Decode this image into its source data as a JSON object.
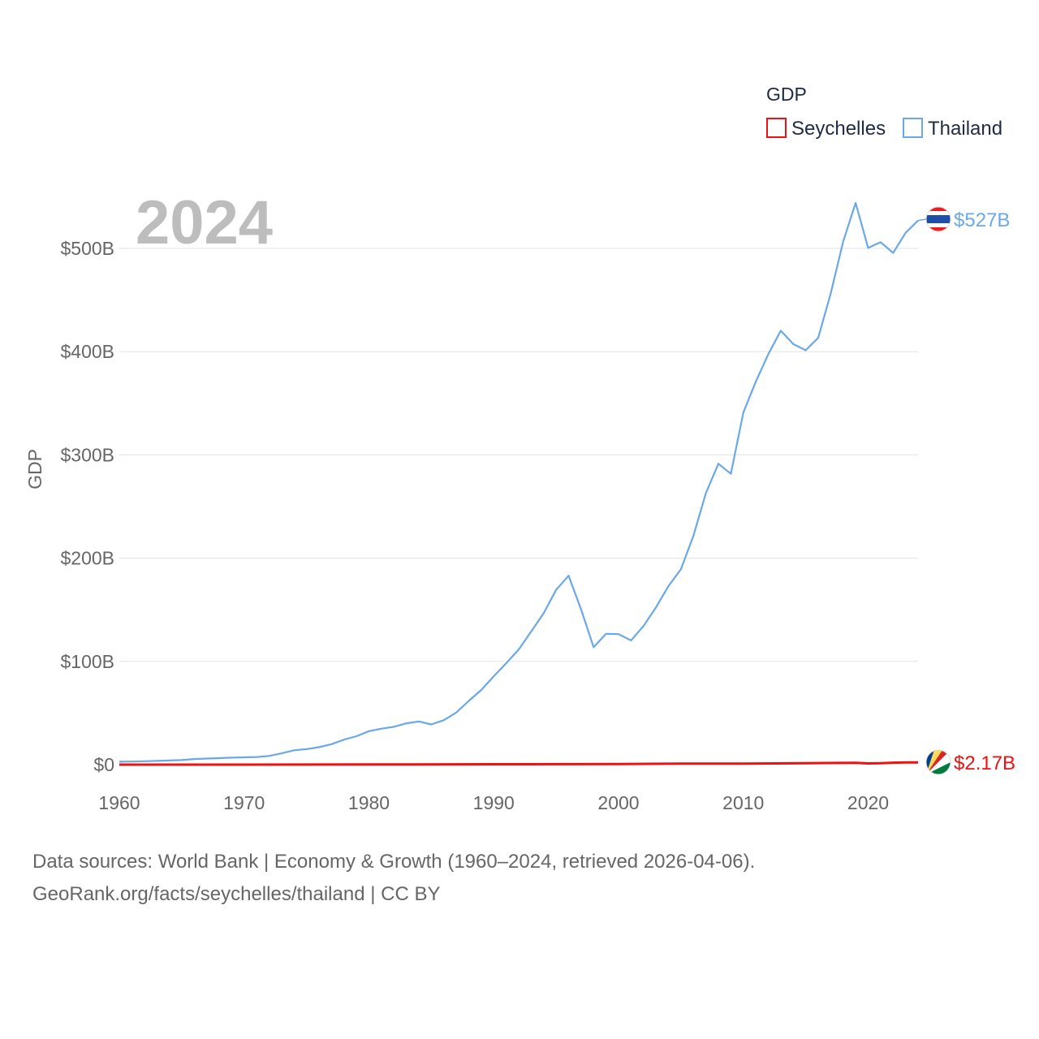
{
  "chart_data": {
    "type": "line",
    "legend_title": "GDP",
    "legend_position": "top-right",
    "ylabel": "GDP",
    "year_label": "2024",
    "xlim": [
      1960,
      2024
    ],
    "ylim": [
      0,
      520
    ],
    "x_ticks": [
      1960,
      1970,
      1980,
      1990,
      2000,
      2010,
      2020
    ],
    "y_ticks": [
      {
        "value": 0,
        "label": "$0"
      },
      {
        "value": 100,
        "label": "$100B"
      },
      {
        "value": 200,
        "label": "$200B"
      },
      {
        "value": 300,
        "label": "$300B"
      },
      {
        "value": 400,
        "label": "$400B"
      },
      {
        "value": 500,
        "label": "$500B"
      }
    ],
    "grid": true,
    "value_unit": "billion USD",
    "series": [
      {
        "name": "Seychelles",
        "color": "#ee1111",
        "flag_icon": "seychelles-flag-icon",
        "end_label": "$2.17B",
        "x": [
          1960,
          1970,
          1980,
          1990,
          2000,
          2005,
          2008,
          2010,
          2015,
          2019,
          2020,
          2021,
          2022,
          2023,
          2024
        ],
        "values": [
          0.01,
          0.02,
          0.15,
          0.37,
          0.61,
          0.92,
          0.97,
          0.97,
          1.38,
          1.7,
          1.18,
          1.3,
          1.9,
          2.1,
          2.17
        ]
      },
      {
        "name": "Thailand",
        "color": "#6aa8e8",
        "flag_icon": "thailand-flag-icon",
        "end_label": "$527B",
        "x": [
          1960,
          1961,
          1962,
          1963,
          1964,
          1965,
          1966,
          1967,
          1968,
          1969,
          1970,
          1971,
          1972,
          1973,
          1974,
          1975,
          1976,
          1977,
          1978,
          1979,
          1980,
          1981,
          1982,
          1983,
          1984,
          1985,
          1986,
          1987,
          1988,
          1989,
          1990,
          1991,
          1992,
          1993,
          1994,
          1995,
          1996,
          1997,
          1998,
          1999,
          2000,
          2001,
          2002,
          2003,
          2004,
          2005,
          2006,
          2007,
          2008,
          2009,
          2010,
          2011,
          2012,
          2013,
          2014,
          2015,
          2016,
          2017,
          2018,
          2019,
          2020,
          2021,
          2022,
          2023,
          2024
        ],
        "values": [
          2.8,
          3.0,
          3.3,
          3.6,
          4.0,
          4.4,
          5.4,
          5.9,
          6.3,
          6.8,
          7.1,
          7.4,
          8.4,
          10.9,
          13.9,
          15.0,
          16.9,
          19.8,
          24.2,
          27.5,
          32.4,
          34.8,
          36.6,
          40.0,
          41.8,
          38.9,
          43.1,
          50.5,
          61.7,
          72.3,
          85.6,
          98.2,
          111.5,
          128.9,
          146.7,
          169.3,
          183.0,
          150.2,
          113.7,
          126.7,
          126.4,
          120.3,
          134.3,
          152.3,
          172.9,
          189.3,
          221.8,
          262.9,
          291.4,
          281.7,
          341.1,
          370.8,
          397.6,
          420.3,
          407.3,
          401.3,
          413.4,
          456.4,
          506.8,
          544.1,
          500.5,
          506.0,
          495.6,
          515.0,
          527.0
        ]
      }
    ]
  },
  "source": {
    "line1": "Data sources: World Bank | Economy & Growth (1960–2024, retrieved 2026-04-06).",
    "line2": "GeoRank.org/facts/seychelles/thailand | CC BY"
  }
}
